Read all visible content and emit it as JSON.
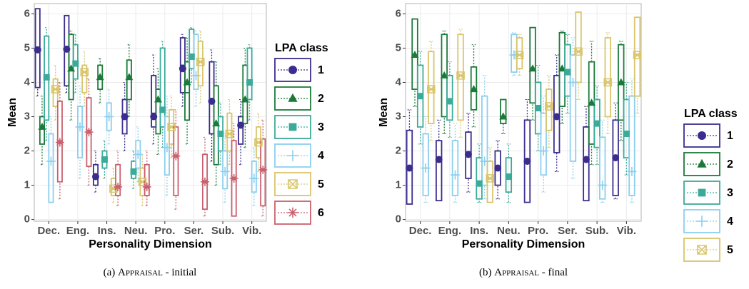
{
  "chart_data": [
    {
      "type": "box",
      "y_label": "Mean",
      "x_label": "Personality Dimension",
      "legend_title": "LPA class",
      "caption": {
        "tag": "(a)",
        "name": "Appraisal",
        "suffix": "- initial"
      },
      "categories": [
        "Dec.",
        "Eng.",
        "Ins.",
        "Neu.",
        "Pro.",
        "Ser.",
        "Sub.",
        "Vib."
      ],
      "ylim": [
        -0.05,
        6.3
      ],
      "yticks": [
        0,
        1,
        2,
        3,
        4,
        5,
        6
      ],
      "grid": true,
      "series": [
        {
          "name": "1",
          "color": "#3b2d8f",
          "shape": "circle",
          "values": [
            4.95,
            4.97,
            1.25,
            3.0,
            3.0,
            4.4,
            3.45,
            2.75
          ],
          "boxes": [
            [
              3.6,
              3.85,
              4.9,
              6.15,
              6.15
            ],
            [
              3.7,
              3.9,
              5.0,
              5.95,
              5.95
            ],
            [
              0.8,
              1.0,
              1.2,
              1.6,
              2.0
            ],
            [
              2.0,
              2.5,
              3.0,
              3.5,
              4.0
            ],
            [
              2.2,
              2.7,
              3.1,
              4.2,
              4.8
            ],
            [
              3.3,
              3.7,
              4.5,
              5.3,
              5.4
            ],
            [
              1.7,
              2.5,
              3.5,
              4.6,
              4.95
            ],
            [
              1.6,
              2.2,
              2.8,
              3.0,
              3.5
            ]
          ]
        },
        {
          "name": "2",
          "color": "#1b7a3a",
          "shape": "triangle",
          "values": [
            2.7,
            4.4,
            4.15,
            4.15,
            3.5,
            4.0,
            2.8,
            3.5
          ],
          "boxes": [
            [
              1.6,
              2.2,
              2.7,
              3.0,
              3.6
            ],
            [
              2.9,
              3.5,
              4.4,
              5.4,
              5.5
            ],
            [
              3.4,
              3.8,
              4.15,
              4.5,
              4.7
            ],
            [
              3.0,
              3.5,
              4.15,
              4.65,
              5.1
            ],
            [
              1.9,
              2.5,
              3.5,
              3.8,
              4.4
            ],
            [
              2.2,
              2.9,
              3.7,
              4.6,
              5.3
            ],
            [
              1.0,
              1.6,
              2.8,
              3.9,
              4.6
            ],
            [
              2.1,
              2.8,
              3.5,
              4.5,
              5.0
            ]
          ]
        },
        {
          "name": "3",
          "color": "#3aab9a",
          "shape": "square",
          "values": [
            4.15,
            4.55,
            1.75,
            1.4,
            3.2,
            4.75,
            2.5,
            4.0
          ],
          "boxes": [
            [
              2.3,
              2.9,
              4.2,
              5.35,
              5.6
            ],
            [
              3.7,
              4.1,
              4.6,
              5.1,
              5.4
            ],
            [
              1.2,
              1.5,
              1.75,
              2.0,
              2.3
            ],
            [
              0.9,
              1.2,
              1.4,
              1.7,
              2.0
            ],
            [
              2.1,
              2.7,
              3.2,
              5.0,
              5.2
            ],
            [
              4.0,
              4.4,
              4.75,
              5.55,
              5.6
            ],
            [
              1.6,
              2.0,
              2.5,
              3.0,
              3.4
            ],
            [
              2.9,
              3.5,
              4.0,
              5.0,
              5.1
            ]
          ]
        },
        {
          "name": "4",
          "color": "#8ccfee",
          "shape": "plus",
          "values": [
            1.7,
            2.7,
            3.0,
            1.9,
            2.1,
            4.2,
            1.4,
            1.2
          ],
          "boxes": [
            [
              0.5,
              0.5,
              1.7,
              2.5,
              3.0
            ],
            [
              1.2,
              1.8,
              2.7,
              3.3,
              3.9
            ],
            [
              2.2,
              2.6,
              3.0,
              3.4,
              3.8
            ],
            [
              1.1,
              1.5,
              1.9,
              2.3,
              2.7
            ],
            [
              0.7,
              1.3,
              2.1,
              3.0,
              3.6
            ],
            [
              3.3,
              3.8,
              4.2,
              5.4,
              5.5
            ],
            [
              0.5,
              0.9,
              1.4,
              2.0,
              2.5
            ],
            [
              0.4,
              0.8,
              1.2,
              1.7,
              2.1
            ]
          ]
        },
        {
          "name": "5",
          "color": "#d9c56a",
          "shape": "boxx",
          "values": [
            3.8,
            4.3,
            0.9,
            1.1,
            2.7,
            4.6,
            2.5,
            2.25
          ],
          "boxes": [
            [
              2.9,
              3.3,
              3.8,
              4.1,
              4.5
            ],
            [
              3.3,
              3.7,
              4.3,
              4.5,
              4.9
            ],
            [
              0.5,
              0.7,
              0.9,
              1.2,
              1.5
            ],
            [
              0.4,
              0.7,
              1.1,
              1.5,
              1.9
            ],
            [
              1.8,
              2.2,
              2.7,
              3.2,
              3.6
            ],
            [
              3.4,
              3.9,
              4.6,
              5.2,
              5.5
            ],
            [
              1.6,
              2.0,
              2.5,
              3.1,
              3.5
            ],
            [
              1.4,
              1.8,
              2.25,
              2.7,
              3.1
            ]
          ]
        },
        {
          "name": "6",
          "color": "#c9606e",
          "shape": "asterisk",
          "values": [
            2.25,
            2.55,
            0.95,
            0.95,
            1.85,
            1.1,
            1.2,
            1.45
          ],
          "boxes": [
            [
              0.6,
              1.1,
              2.3,
              3.45,
              4.0
            ],
            [
              1.0,
              1.55,
              2.6,
              3.55,
              4.1
            ],
            [
              0.4,
              0.7,
              0.95,
              1.6,
              2.0
            ],
            [
              0.4,
              0.7,
              0.95,
              1.6,
              2.0
            ],
            [
              0.3,
              0.7,
              1.85,
              2.7,
              3.2
            ],
            [
              0.1,
              0.3,
              1.1,
              1.9,
              2.4
            ],
            [
              0.1,
              0.1,
              1.2,
              2.3,
              2.8
            ],
            [
              0.1,
              0.4,
              1.45,
              2.35,
              2.9
            ]
          ]
        }
      ]
    },
    {
      "type": "box",
      "y_label": "Mean",
      "x_label": "Personality Dimension",
      "legend_title": "LPA class",
      "caption": {
        "tag": "(b)",
        "name": "Appraisal",
        "suffix": "- final"
      },
      "categories": [
        "Dec.",
        "Eng.",
        "Ins.",
        "Neu.",
        "Pro.",
        "Ser.",
        "Sub.",
        "Vib."
      ],
      "ylim": [
        -0.05,
        6.3
      ],
      "yticks": [
        0,
        1,
        2,
        3,
        4,
        5,
        6
      ],
      "grid": true,
      "series": [
        {
          "name": "1",
          "color": "#3b2d8f",
          "shape": "circle",
          "values": [
            1.5,
            1.75,
            1.9,
            1.5,
            1.7,
            3.0,
            1.75,
            1.8
          ],
          "boxes": [
            [
              0.45,
              0.45,
              1.5,
              2.6,
              3.2
            ],
            [
              0.55,
              0.55,
              1.7,
              2.3,
              2.9
            ],
            [
              0.8,
              1.2,
              1.9,
              2.55,
              3.1
            ],
            [
              0.6,
              1.0,
              1.5,
              2.0,
              2.3
            ],
            [
              0.5,
              0.5,
              1.7,
              2.9,
              3.5
            ],
            [
              1.4,
              1.95,
              3.0,
              4.2,
              4.8
            ],
            [
              0.55,
              0.55,
              1.75,
              2.7,
              3.3
            ],
            [
              0.6,
              0.7,
              1.8,
              2.9,
              3.4
            ]
          ]
        },
        {
          "name": "2",
          "color": "#1b7a3a",
          "shape": "triangle",
          "values": [
            4.8,
            4.2,
            3.8,
            3.0,
            4.4,
            4.4,
            3.4,
            4.0
          ],
          "boxes": [
            [
              3.3,
              3.8,
              4.8,
              5.85,
              5.85
            ],
            [
              2.5,
              3.0,
              4.2,
              5.4,
              5.5
            ],
            [
              2.7,
              3.2,
              3.8,
              4.45,
              5.1
            ],
            [
              2.5,
              2.8,
              3.0,
              3.5,
              3.5
            ],
            [
              2.9,
              3.4,
              4.4,
              5.6,
              5.6
            ],
            [
              2.8,
              3.3,
              4.4,
              5.45,
              5.5
            ],
            [
              1.6,
              2.2,
              3.4,
              4.6,
              5.2
            ],
            [
              2.3,
              2.9,
              4.0,
              5.1,
              5.2
            ]
          ]
        },
        {
          "name": "3",
          "color": "#3aab9a",
          "shape": "square",
          "values": [
            3.6,
            3.45,
            1.05,
            1.25,
            3.25,
            4.3,
            2.8,
            2.5
          ],
          "boxes": [
            [
              2.2,
              2.7,
              3.6,
              4.5,
              4.9
            ],
            [
              2.4,
              2.9,
              3.45,
              4.2,
              4.6
            ],
            [
              0.5,
              0.6,
              1.05,
              1.8,
              2.2
            ],
            [
              0.5,
              0.8,
              1.25,
              1.8,
              2.2
            ],
            [
              2.0,
              2.5,
              3.25,
              4.0,
              4.5
            ],
            [
              3.1,
              3.6,
              4.3,
              5.1,
              5.4
            ],
            [
              1.6,
              2.1,
              2.8,
              3.5,
              3.9
            ],
            [
              1.3,
              1.8,
              2.5,
              3.5,
              4.0
            ]
          ]
        },
        {
          "name": "4",
          "color": "#8ccfee",
          "shape": "plus",
          "values": [
            1.5,
            1.3,
            1.7,
            4.8,
            2.0,
            4.0,
            1.0,
            1.4
          ],
          "boxes": [
            [
              0.5,
              0.7,
              1.5,
              2.5,
              3.0
            ],
            [
              0.5,
              0.7,
              1.3,
              2.3,
              2.8
            ],
            [
              0.6,
              1.0,
              1.7,
              3.6,
              4.2
            ],
            [
              4.2,
              4.3,
              4.8,
              5.4,
              5.45
            ],
            [
              0.8,
              1.3,
              2.0,
              3.1,
              3.6
            ],
            [
              1.2,
              1.7,
              4.0,
              4.8,
              5.3
            ],
            [
              0.5,
              0.6,
              1.0,
              2.4,
              2.9
            ],
            [
              0.5,
              0.7,
              1.4,
              3.6,
              4.1
            ]
          ]
        },
        {
          "name": "5",
          "color": "#d9c56a",
          "shape": "boxx",
          "values": [
            3.8,
            4.2,
            1.2,
            4.8,
            3.3,
            4.9,
            4.0,
            4.8
          ],
          "boxes": [
            [
              2.3,
              2.8,
              3.8,
              4.9,
              5.2
            ],
            [
              2.4,
              2.9,
              4.2,
              5.4,
              5.55
            ],
            [
              0.5,
              0.5,
              1.2,
              1.7,
              2.1
            ],
            [
              4.2,
              4.4,
              4.8,
              5.3,
              5.4
            ],
            [
              2.1,
              2.6,
              3.3,
              3.8,
              4.2
            ],
            [
              3.5,
              4.0,
              4.9,
              6.05,
              6.05
            ],
            [
              2.5,
              3.0,
              4.0,
              5.3,
              5.45
            ],
            [
              3.1,
              3.6,
              4.8,
              5.9,
              5.9
            ]
          ]
        }
      ]
    }
  ]
}
